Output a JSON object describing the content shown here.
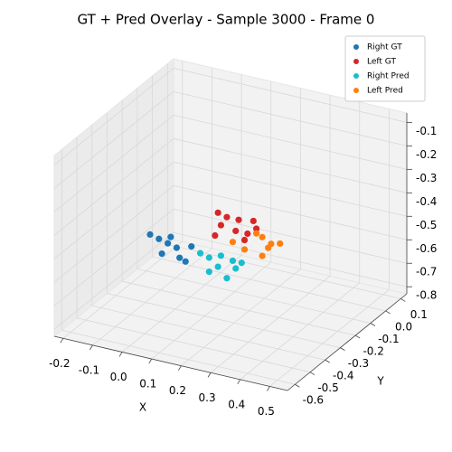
{
  "chart_data": {
    "type": "scatter3d",
    "title": "GT + Pred Overlay - Sample 3000 - Frame 0",
    "xlabel": "X",
    "ylabel": "Y",
    "xlim": [
      -0.23,
      0.56
    ],
    "ylim": [
      -0.65,
      0.14
    ],
    "zlim": [
      -0.83,
      -0.06
    ],
    "xticks": [
      -0.2,
      -0.1,
      {
        "value": 0,
        "label": "0.0"
      },
      0.1,
      0.2,
      0.3,
      0.4,
      0.5
    ],
    "yticks": [
      -0.6,
      -0.5,
      -0.4,
      -0.3,
      -0.2,
      -0.1,
      {
        "value": 0,
        "label": "0.0"
      },
      0.1
    ],
    "zticks": [
      -0.8,
      -0.7,
      -0.6,
      -0.5,
      -0.4,
      -0.3,
      -0.2,
      -0.1
    ],
    "grid": true,
    "legend": "upper right",
    "series": [
      {
        "name": "Right GT",
        "color": "#1f77b4",
        "x": [
          -0.11,
          -0.08,
          -0.05,
          -0.02,
          -0.07,
          -0.01,
          0.03,
          -0.04,
          0.01
        ],
        "y": [
          -0.25,
          -0.25,
          -0.25,
          -0.25,
          -0.25,
          -0.25,
          -0.25,
          -0.25,
          -0.25
        ],
        "z": [
          -0.57,
          -0.58,
          -0.59,
          -0.6,
          -0.64,
          -0.64,
          -0.58,
          -0.56,
          -0.65
        ]
      },
      {
        "name": "Left GT",
        "color": "#d62728",
        "x": [
          0.12,
          0.15,
          0.19,
          0.24,
          0.13,
          0.18,
          0.22,
          0.11,
          0.25,
          0.21
        ],
        "y": [
          -0.25,
          -0.25,
          -0.25,
          -0.25,
          -0.25,
          -0.25,
          -0.25,
          -0.25,
          -0.25,
          -0.25
        ],
        "z": [
          -0.41,
          -0.42,
          -0.42,
          -0.41,
          -0.46,
          -0.47,
          -0.47,
          -0.51,
          -0.44,
          -0.5
        ]
      },
      {
        "name": "Right Pred",
        "color": "#17becf",
        "x": [
          0.06,
          0.09,
          0.13,
          0.17,
          0.2,
          0.09,
          0.12,
          0.15,
          0.18
        ],
        "y": [
          -0.25,
          -0.25,
          -0.25,
          -0.25,
          -0.25,
          -0.25,
          -0.25,
          -0.25,
          -0.25
        ],
        "z": [
          -0.6,
          -0.61,
          -0.59,
          -0.6,
          -0.6,
          -0.67,
          -0.64,
          -0.68,
          -0.63
        ]
      },
      {
        "name": "Left Pred",
        "color": "#ff7f0e",
        "x": [
          0.17,
          0.21,
          0.27,
          0.3,
          0.33,
          0.29,
          0.27,
          0.25
        ],
        "y": [
          -0.25,
          -0.25,
          -0.25,
          -0.25,
          -0.25,
          -0.25,
          -0.25,
          -0.25
        ],
        "z": [
          -0.52,
          -0.54,
          -0.47,
          -0.49,
          -0.48,
          -0.51,
          -0.55,
          -0.46
        ]
      }
    ]
  }
}
